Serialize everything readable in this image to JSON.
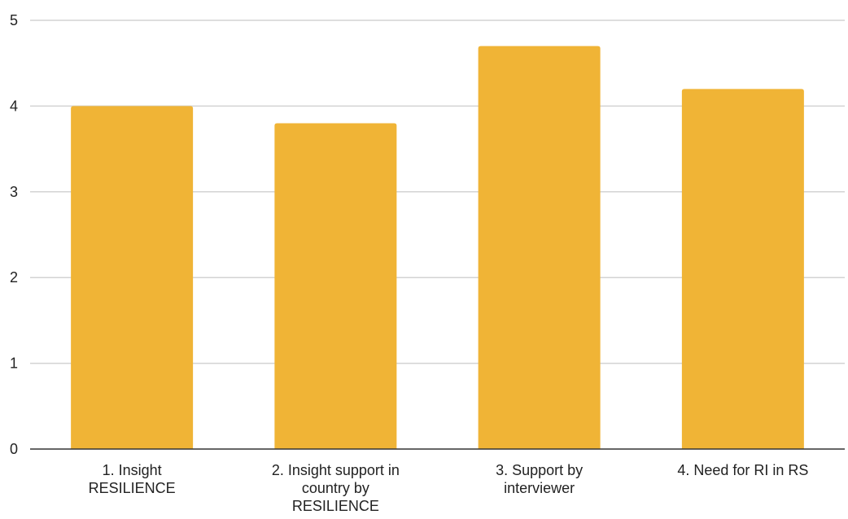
{
  "chart_data": {
    "type": "bar",
    "categories": [
      "1. Insight RESILIENCE",
      "2. Insight support in country by RESILIENCE",
      "3. Support by interviewer",
      "4. Need for RI in RS"
    ],
    "category_label_lines": [
      [
        "1. Insight",
        "RESILIENCE"
      ],
      [
        "2. Insight support in",
        "country by",
        "RESILIENCE"
      ],
      [
        "3. Support by",
        "interviewer"
      ],
      [
        "4. Need for RI in RS"
      ]
    ],
    "values": [
      4.0,
      3.8,
      4.7,
      4.2
    ],
    "yticks": [
      "0",
      "1",
      "2",
      "3",
      "4",
      "5"
    ],
    "ylim": [
      0,
      5
    ],
    "title": "",
    "xlabel": "",
    "ylabel": "",
    "grid": true,
    "legend": "none",
    "colors": {
      "bar": "#F0B436",
      "grid": "#D3D3D3",
      "axis": "#333333",
      "text": "#222222"
    }
  }
}
